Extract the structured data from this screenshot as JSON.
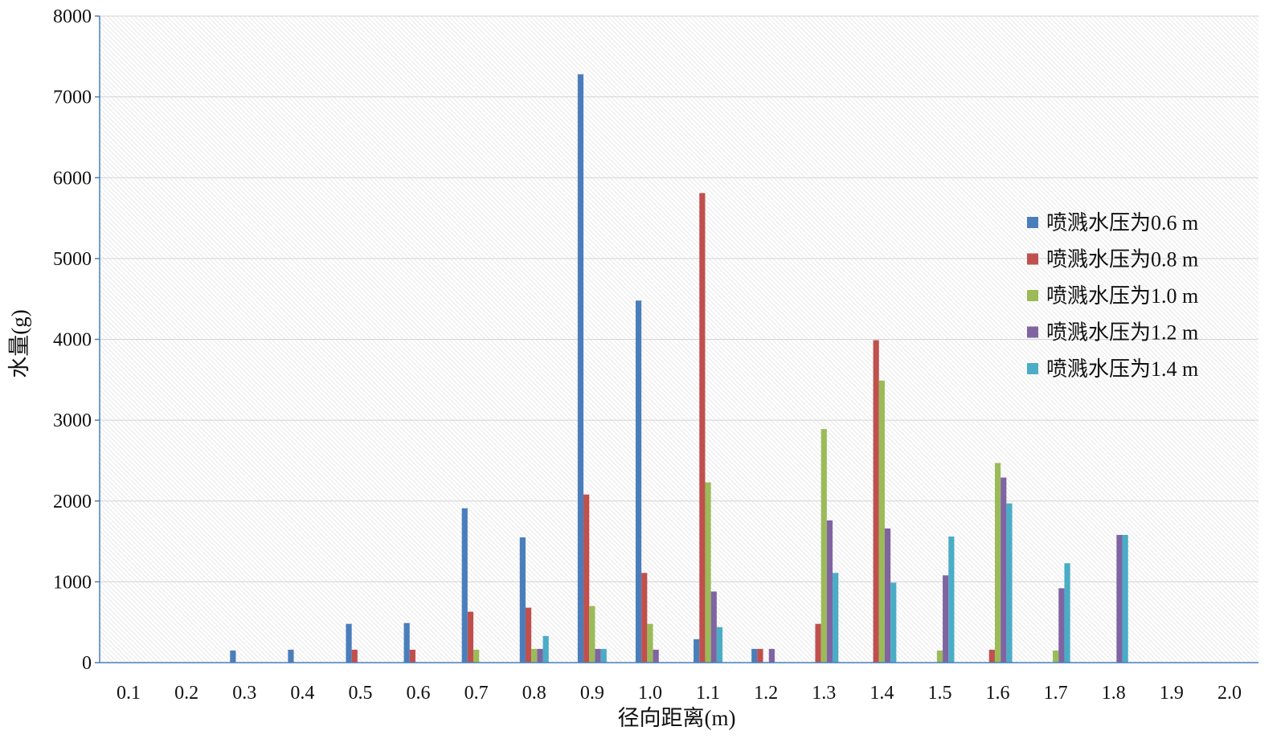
{
  "chart_data": {
    "type": "bar",
    "xlabel": "径向距离(m)",
    "ylabel": "水量(g)",
    "ylim": [
      0,
      8000
    ],
    "yticks": [
      "0",
      "1000",
      "2000",
      "3000",
      "4000",
      "5000",
      "6000",
      "7000",
      "8000"
    ],
    "categories": [
      "0.1",
      "0.2",
      "0.3",
      "0.4",
      "0.5",
      "0.6",
      "0.7",
      "0.8",
      "0.9",
      "1.0",
      "1.1",
      "1.2",
      "1.3",
      "1.4",
      "1.5",
      "1.6",
      "1.7",
      "1.8",
      "1.9",
      "2.0"
    ],
    "grid": true,
    "legend_position": "right",
    "series": [
      {
        "name": "喷溅水压为0.6 m",
        "color": "#4a7ebb",
        "values": [
          0,
          0,
          150,
          160,
          480,
          490,
          1910,
          1550,
          7280,
          4480,
          290,
          170,
          0,
          0,
          0,
          0,
          0,
          0,
          0,
          0
        ]
      },
      {
        "name": "喷溅水压为0.8 m",
        "color": "#c0504d",
        "values": [
          0,
          0,
          0,
          0,
          160,
          160,
          630,
          680,
          2080,
          1110,
          5810,
          170,
          480,
          3990,
          0,
          160,
          0,
          0,
          0,
          0
        ]
      },
      {
        "name": "喷溅水压为1.0 m",
        "color": "#9bbb59",
        "values": [
          0,
          0,
          0,
          0,
          0,
          0,
          160,
          170,
          700,
          480,
          2230,
          0,
          2890,
          3490,
          150,
          2470,
          150,
          0,
          0,
          0
        ]
      },
      {
        "name": "喷溅水压为1.2 m",
        "color": "#8064a2",
        "values": [
          0,
          0,
          0,
          0,
          0,
          0,
          0,
          170,
          170,
          160,
          880,
          170,
          1760,
          1660,
          1080,
          2290,
          920,
          1580,
          0,
          0
        ]
      },
      {
        "name": "喷溅水压为1.4 m",
        "color": "#4bacc6",
        "values": [
          0,
          0,
          0,
          0,
          0,
          0,
          0,
          330,
          170,
          0,
          440,
          0,
          1110,
          990,
          1560,
          1970,
          1230,
          1580,
          0,
          0
        ]
      }
    ]
  }
}
